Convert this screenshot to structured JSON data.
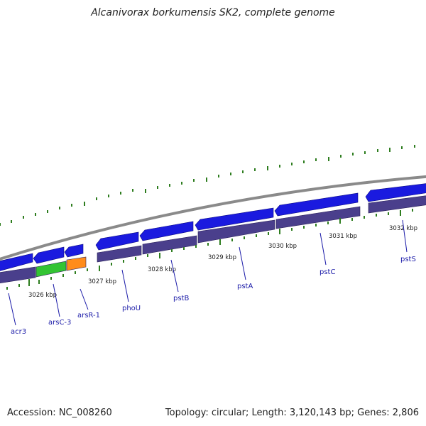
{
  "title": "Alcanivorax borkumensis SK2, complete genome",
  "footer": {
    "accession": "Accession: NC_008260",
    "stats": "Topology: circular; Length: 3,120,143 bp; Genes: 2,806"
  },
  "scale_labels": [
    "3026 kbp",
    "3027 kbp",
    "3028 kbp",
    "3029 kbp",
    "3030 kbp",
    "3031 kbp",
    "3032 kbp"
  ],
  "gene_labels": [
    "acr3",
    "arsC-3",
    "arsR-1",
    "phoU",
    "pstB",
    "pstA",
    "pstC",
    "pstS"
  ],
  "colors": {
    "backbone": "#8a8a8a",
    "cds": "#1a1adf",
    "feature": "#4a3f8c",
    "arsC_feature": "#33c433",
    "arsR_feature": "#ff8c1a",
    "tick": "#2e7d1f",
    "label": "#1a1aa8"
  }
}
